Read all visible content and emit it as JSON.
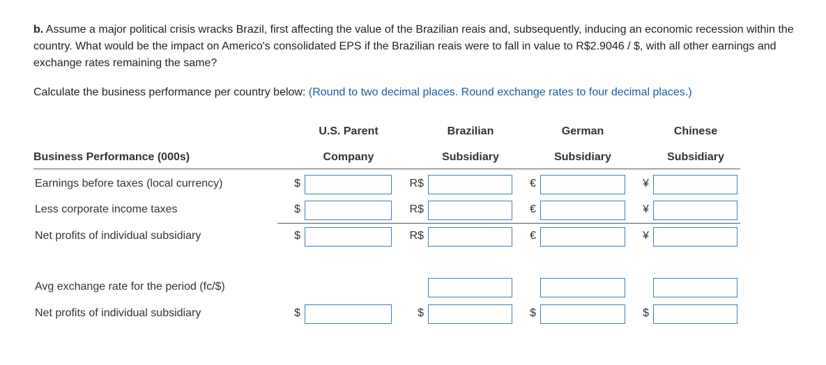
{
  "question": {
    "label": "b.",
    "text": "Assume a major political crisis wracks Brazil, first affecting the value of the Brazilian reais and, subsequently, inducing an economic recession within the country. What would be the impact on Americo's consolidated EPS if the Brazilian reais were to fall in value to R$2.9046 / $, with all other earnings and exchange rates remaining the same?"
  },
  "instruction": {
    "text": "Calculate the business performance per country below:",
    "note": "(Round to two decimal places. Round exchange rates to four decimal places.)"
  },
  "table": {
    "header_top": [
      "U.S. Parent",
      "Brazilian",
      "German",
      "Chinese"
    ],
    "header": [
      "Business Performance (000s)",
      "Company",
      "Subsidiary",
      "Subsidiary",
      "Subsidiary"
    ],
    "rows": [
      {
        "label": "Earnings before taxes (local currency)",
        "units": [
          "$",
          "R$",
          "€",
          "¥"
        ]
      },
      {
        "label": "Less corporate income taxes",
        "units": [
          "$",
          "R$",
          "€",
          "¥"
        ]
      },
      {
        "label": "Net profits of individual subsidiary",
        "units": [
          "$",
          "R$",
          "€",
          "¥"
        ]
      },
      {
        "label": "Avg exchange rate for the period (fc/$)",
        "units": [
          null,
          null,
          null,
          null
        ]
      },
      {
        "label": "Net profits of individual subsidiary",
        "units": [
          "$",
          "$",
          "$",
          "$"
        ]
      }
    ]
  }
}
